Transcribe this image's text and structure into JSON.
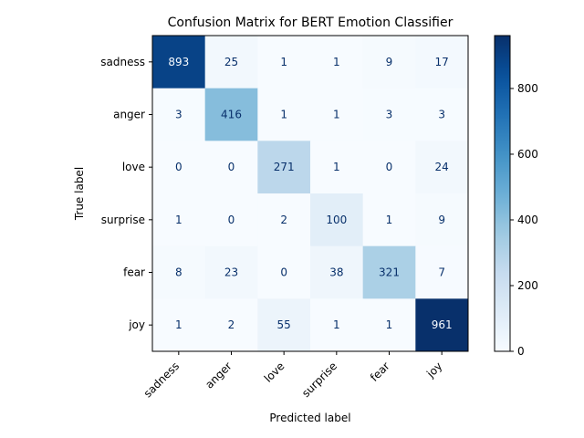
{
  "chart_data": {
    "type": "heatmap",
    "title": "Confusion Matrix for BERT Emotion Classifier",
    "xlabel": "Predicted label",
    "ylabel": "True label",
    "x_categories": [
      "sadness",
      "anger",
      "love",
      "surprise",
      "fear",
      "joy"
    ],
    "y_categories": [
      "sadness",
      "anger",
      "love",
      "surprise",
      "fear",
      "joy"
    ],
    "values": [
      [
        893,
        25,
        1,
        1,
        9,
        17
      ],
      [
        3,
        416,
        1,
        1,
        3,
        3
      ],
      [
        0,
        0,
        271,
        1,
        0,
        24
      ],
      [
        1,
        0,
        2,
        100,
        1,
        9
      ],
      [
        8,
        23,
        0,
        38,
        321,
        7
      ],
      [
        1,
        2,
        55,
        1,
        1,
        961
      ]
    ],
    "colormap": "Blues",
    "color_range": [
      0,
      961
    ],
    "colorbar_ticks": [
      0,
      200,
      400,
      600,
      800
    ],
    "colors": {
      "low": "#f7fbff",
      "high": "#08306b",
      "text_dark": "#08306b",
      "text_light": "#f7fbff"
    }
  }
}
